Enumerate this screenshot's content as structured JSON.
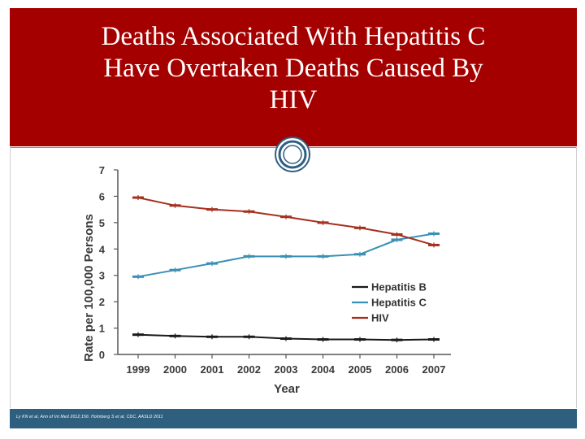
{
  "slide": {
    "title_lines": [
      "Deaths Associated With Hepatitis C",
      "Have Overtaken Deaths Caused By",
      "HIV"
    ],
    "footer_citation": "Ly KN et al, Ann of Int Med 2012;156: Holmberg S et al, CDC, AASLD 2011"
  },
  "colors": {
    "title_band": "#a50000",
    "footer_bar": "#2f5f7f",
    "hepatitis_b": "#1a1a1a",
    "hepatitis_c": "#3a8fb5",
    "hiv": "#a5301e"
  },
  "chart_data": {
    "type": "line",
    "xlabel": "Year",
    "ylabel": "Rate per 100,000 Persons",
    "x": [
      "1999",
      "2000",
      "2001",
      "2002",
      "2003",
      "2004",
      "2005",
      "2006",
      "2007"
    ],
    "ylim": [
      0,
      7
    ],
    "yticks": [
      "0",
      "1",
      "2",
      "3",
      "4",
      "5",
      "6",
      "7"
    ],
    "grid": false,
    "legend_position": "lower-right",
    "series": [
      {
        "name": "Hepatitis B",
        "color": "#1a1a1a",
        "values": [
          0.75,
          0.7,
          0.67,
          0.67,
          0.6,
          0.57,
          0.57,
          0.55,
          0.57
        ]
      },
      {
        "name": "Hepatitis C",
        "color": "#3a8fb5",
        "values": [
          2.95,
          3.2,
          3.45,
          3.72,
          3.72,
          3.72,
          3.8,
          4.35,
          4.58
        ]
      },
      {
        "name": "HIV",
        "color": "#a5301e",
        "values": [
          5.95,
          5.65,
          5.5,
          5.42,
          5.22,
          5.0,
          4.8,
          4.55,
          4.15
        ]
      }
    ]
  }
}
